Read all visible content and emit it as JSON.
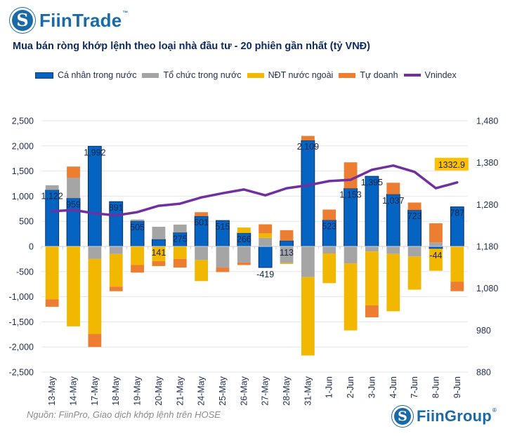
{
  "brand": {
    "top_logo_text": "FiinTrade",
    "top_logo_mark": "S",
    "top_logo_tm": "™",
    "bottom_logo_text": "FiinGroup",
    "bottom_logo_mark": "S",
    "bottom_logo_reg": "®"
  },
  "source_note": "Nguồn: FiinPro, Giao dịch khớp lệnh trên HOSE",
  "colors": {
    "ca_nhan": "#0563c1",
    "to_chuc": "#a5a5a5",
    "ndt_nn": "#f2b800",
    "tu_doanh": "#ed7d31",
    "vnindex": "#7030a0",
    "callout_bg": "#ffc000",
    "text": "#1f2d4d"
  },
  "chart_data": {
    "type": "bar",
    "stacked": true,
    "title": "Mua bán ròng khớp lệnh theo loại nhà đầu tư - 20 phiên gần nhất (tỷ VNĐ)",
    "xlabel": "",
    "ylabel": "",
    "y2label": "",
    "categories": [
      "13-May",
      "14-May",
      "17-May",
      "18-May",
      "19-May",
      "20-May",
      "21-May",
      "24-May",
      "25-May",
      "26-May",
      "27-May",
      "28-May",
      "31-May",
      "1-Jun",
      "2-Jun",
      "3-Jun",
      "4-Jun",
      "7-Jun",
      "8-Jun",
      "9-Jun"
    ],
    "ylim": [
      -2500,
      2500
    ],
    "yticks": [
      2500,
      2000,
      1500,
      1000,
      500,
      0,
      -500,
      -1000,
      -1500,
      -2000,
      -2500
    ],
    "ytick_labels": [
      "2,500",
      "2,000",
      "1,500",
      "1,000",
      "500",
      "0",
      "-500",
      "-1,000",
      "-1,500",
      "-2,000",
      "-2,500"
    ],
    "y2lim": [
      880,
      1480
    ],
    "y2ticks": [
      1480,
      1380,
      1280,
      1180,
      1080,
      980,
      880
    ],
    "y2tick_labels": [
      "1,480",
      "1,380",
      "1,280",
      "1,180",
      "1,080",
      "980",
      "880"
    ],
    "grid": true,
    "legend_position": "top",
    "series": [
      {
        "name": "Cá nhân trong nước",
        "type": "bar",
        "color_key": "ca_nhan",
        "values": [
          1122,
          959,
          1992,
          891,
          505,
          141,
          275,
          601,
          515,
          266,
          -419,
          113,
          2109,
          523,
          1153,
          1395,
          1037,
          723,
          -44,
          787
        ],
        "labels": [
          "1,122",
          "959",
          "1,992",
          "891",
          "505",
          "141",
          "275",
          "601",
          "515",
          "266",
          "-419",
          "113",
          "2,109",
          "523",
          "1,153",
          "1,395",
          "1,037",
          "723",
          "-44",
          "787"
        ]
      },
      {
        "name": "Tổ chức trong nước",
        "type": "bar",
        "color_key": "to_chuc",
        "values": [
          95,
          410,
          -250,
          -150,
          30,
          250,
          160,
          -270,
          -420,
          -320,
          170,
          -330,
          -610,
          -140,
          -340,
          -100,
          -150,
          -200,
          80,
          -10
        ]
      },
      {
        "name": "NĐT nước ngoài",
        "type": "bar",
        "color_key": "ndt_nn",
        "values": [
          -1050,
          -1590,
          -1490,
          -650,
          -370,
          -290,
          -250,
          -420,
          0,
          110,
          90,
          -20,
          -1560,
          -590,
          -1330,
          -1070,
          -1140,
          -660,
          -440,
          -690
        ]
      },
      {
        "name": "Tự doanh",
        "type": "bar",
        "color_key": "tu_doanh",
        "values": [
          -150,
          220,
          -260,
          -90,
          -150,
          -100,
          -170,
          80,
          -90,
          -50,
          180,
          210,
          90,
          210,
          520,
          -240,
          230,
          150,
          380,
          -190
        ]
      },
      {
        "name": "Vnindex",
        "type": "line",
        "axis": "right",
        "color_key": "vnindex",
        "values": [
          1264,
          1267,
          1259,
          1254,
          1262,
          1277,
          1282,
          1297,
          1307,
          1316,
          1302,
          1319,
          1326,
          1336,
          1339,
          1363,
          1373,
          1358,
          1319,
          1332.9
        ]
      }
    ],
    "annotations": [
      {
        "text": "1332.9",
        "series": "Vnindex",
        "category": "9-Jun"
      }
    ]
  }
}
